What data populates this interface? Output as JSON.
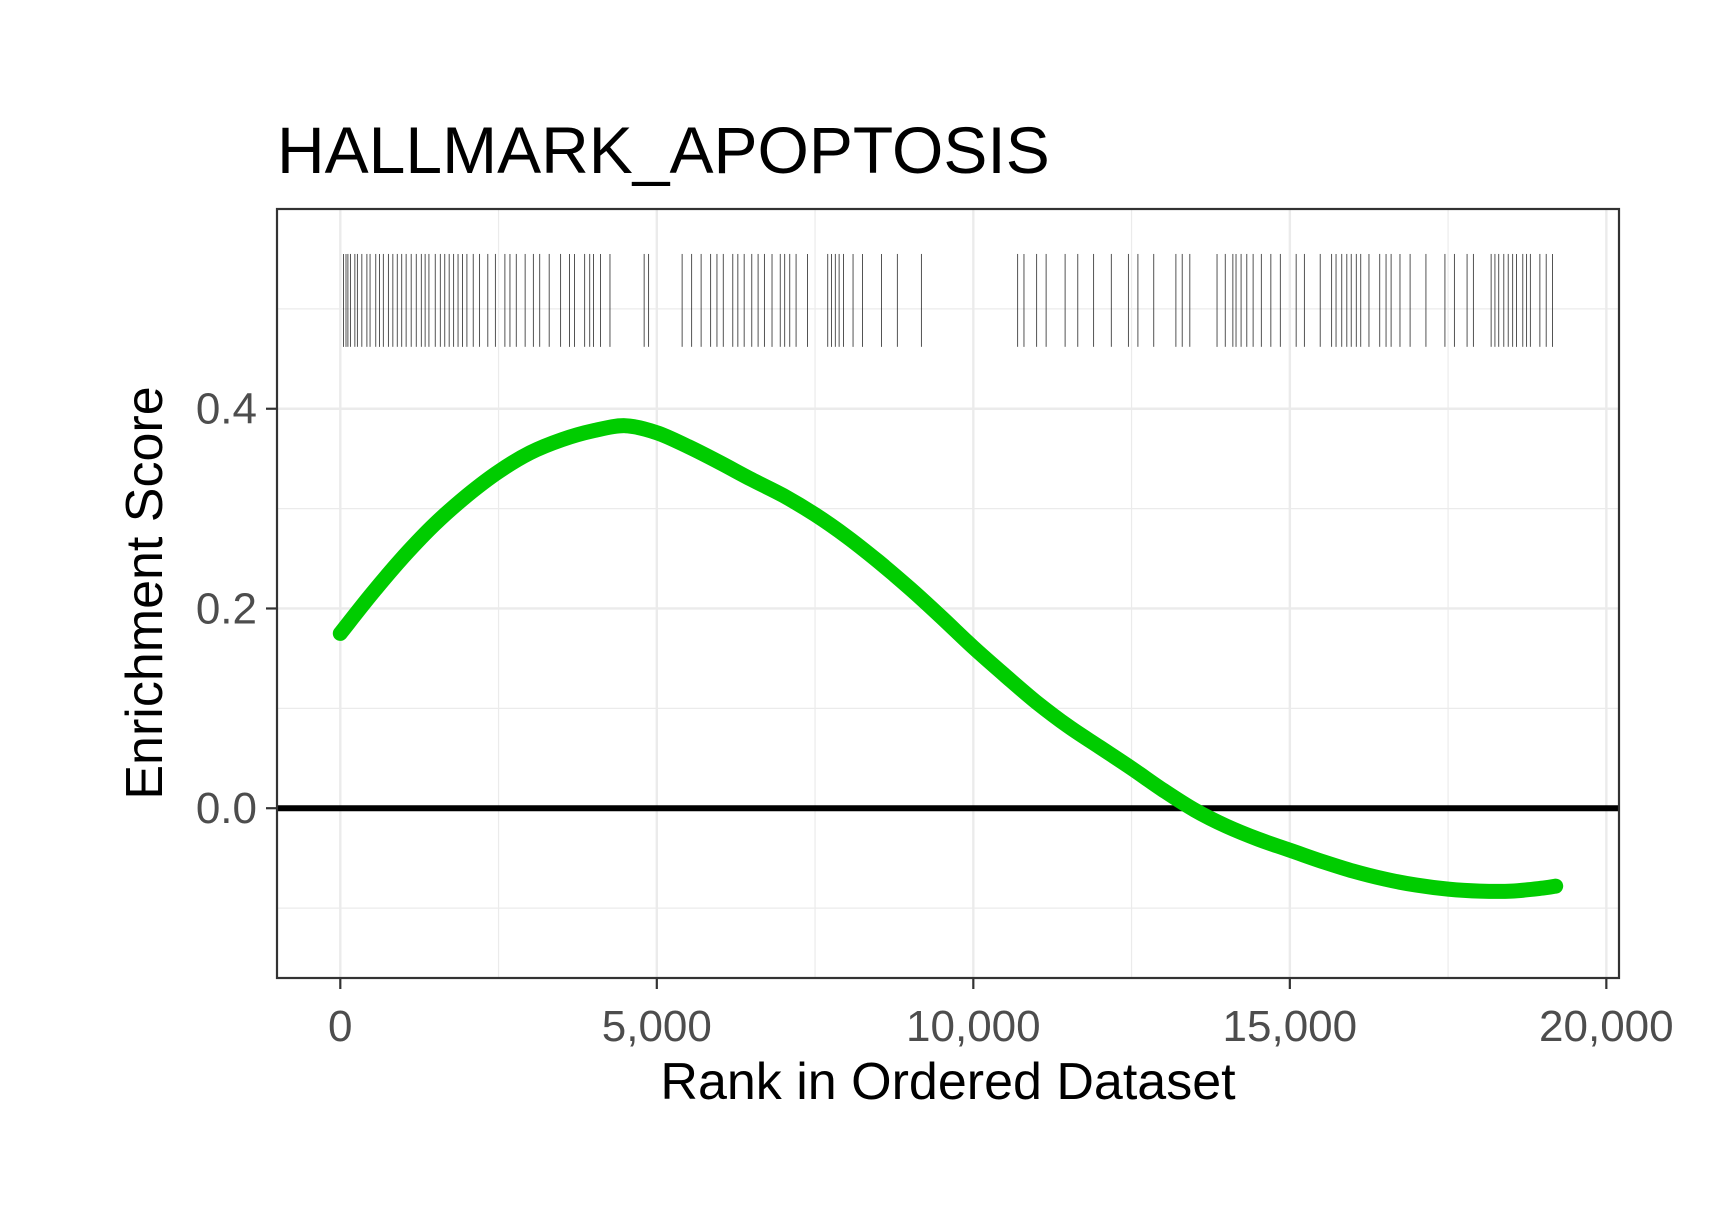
{
  "chart_data": {
    "type": "line",
    "title": "HALLMARK_APOPTOSIS",
    "xlabel": "Rank in Ordered Dataset",
    "ylabel": "Enrichment Score",
    "xlim": [
      -1000,
      20200
    ],
    "ylim": [
      -0.17,
      0.6
    ],
    "x_ticks": [
      0,
      5000,
      10000,
      15000,
      20000
    ],
    "x_tick_labels": [
      "0",
      "5,000",
      "10,000",
      "15,000",
      "20,000"
    ],
    "y_ticks": [
      0.0,
      0.2,
      0.4
    ],
    "y_tick_labels": [
      "0.0",
      "0.2",
      "0.4"
    ],
    "x_minor_ticks": [
      2500,
      7500,
      12500,
      17500
    ],
    "y_minor_ticks": [
      -0.1,
      0.1,
      0.3,
      0.5
    ],
    "grid": true,
    "legend": "none",
    "reference_line": {
      "y": 0,
      "color": "#000000"
    },
    "series": [
      {
        "color": "#00cc00",
        "x": [
          0,
          500,
          1000,
          1500,
          2000,
          2500,
          3000,
          3500,
          4000,
          4500,
          5000,
          5500,
          6000,
          6500,
          7000,
          7500,
          8000,
          8500,
          9000,
          9500,
          10000,
          10500,
          11000,
          11500,
          12000,
          12500,
          13000,
          13500,
          14000,
          14500,
          15000,
          15500,
          16000,
          16500,
          17000,
          17500,
          18000,
          18500,
          19000,
          19200
        ],
        "y": [
          0.175,
          0.215,
          0.252,
          0.285,
          0.313,
          0.337,
          0.356,
          0.369,
          0.378,
          0.383,
          0.376,
          0.362,
          0.346,
          0.329,
          0.313,
          0.294,
          0.272,
          0.247,
          0.22,
          0.191,
          0.161,
          0.133,
          0.106,
          0.082,
          0.061,
          0.04,
          0.018,
          -0.002,
          -0.018,
          -0.031,
          -0.042,
          -0.053,
          -0.063,
          -0.071,
          -0.077,
          -0.081,
          -0.083,
          -0.083,
          -0.08,
          -0.078
        ]
      }
    ],
    "gene_hits": [
      50,
      90,
      120,
      160,
      230,
      270,
      340,
      420,
      470,
      560,
      620,
      680,
      760,
      830,
      900,
      970,
      1040,
      1120,
      1200,
      1280,
      1340,
      1400,
      1500,
      1580,
      1650,
      1720,
      1790,
      1860,
      1930,
      2000,
      2100,
      2200,
      2330,
      2450,
      2600,
      2680,
      2780,
      2920,
      3050,
      3150,
      3300,
      3480,
      3620,
      3700,
      3860,
      3940,
      4000,
      4110,
      4260,
      4800,
      4870,
      5400,
      5550,
      5700,
      5850,
      5950,
      6050,
      6200,
      6280,
      6380,
      6500,
      6600,
      6700,
      6820,
      6950,
      7020,
      7100,
      7200,
      7380,
      7700,
      7760,
      7820,
      7880,
      7950,
      8100,
      8250,
      8550,
      8800,
      9180,
      10700,
      10800,
      11000,
      11150,
      11450,
      11650,
      11900,
      12180,
      12450,
      12600,
      12850,
      13200,
      13300,
      13420,
      13850,
      13980,
      14100,
      14150,
      14230,
      14320,
      14420,
      14550,
      14700,
      14850,
      15100,
      15230,
      15480,
      15660,
      15730,
      15820,
      15900,
      15970,
      16050,
      16120,
      16250,
      16420,
      16520,
      16600,
      16740,
      16900,
      17150,
      17450,
      17600,
      17800,
      17900,
      18180,
      18240,
      18300,
      18380,
      18450,
      18520,
      18580,
      18680,
      18740,
      18800,
      18950,
      19050,
      19150
    ]
  }
}
